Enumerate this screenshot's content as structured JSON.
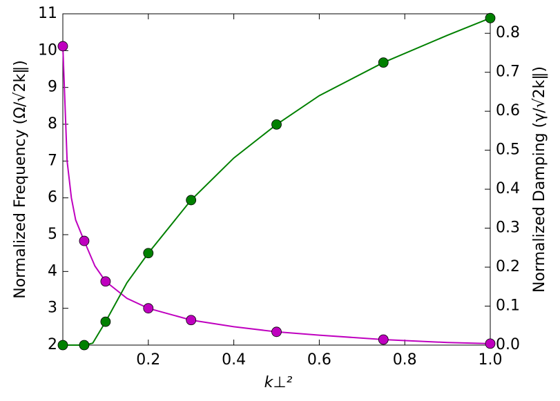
{
  "chart_data": {
    "type": "line",
    "x_label": "k⊥²",
    "y_label": "Normalized Frequency (Ω/√2k‖)",
    "y2_label": "Normalized Damping (γ/√2k‖)",
    "y_color": "#bf00bf",
    "y2_color": "#008000",
    "xlim": [
      0,
      1
    ],
    "xticks": [
      0.2,
      0.4,
      0.6,
      0.8,
      {
        "value": 1,
        "label": "1.0"
      }
    ],
    "ylim": [
      2,
      11
    ],
    "yticks": [
      2,
      3,
      4,
      5,
      6,
      7,
      8,
      9,
      10,
      11
    ],
    "y2lim": [
      0,
      0.85
    ],
    "y2ticks": [
      {
        "value": 0,
        "label": "0.0"
      },
      0.1,
      0.2,
      0.3,
      0.4,
      0.5,
      0.6,
      0.7,
      0.8
    ],
    "series": [
      {
        "style": "line",
        "color": "#bf00bf",
        "x": [
          0,
          0.01,
          0.02,
          0.03,
          0.05,
          0.075,
          0.1,
          0.15,
          0.2,
          0.3,
          0.4,
          0.5,
          0.6,
          0.75,
          0.9,
          1.0
        ],
        "values": [
          10.12,
          7.0,
          6.0,
          5.4,
          4.83,
          4.15,
          3.73,
          3.27,
          3.0,
          2.68,
          2.5,
          2.36,
          2.27,
          2.15,
          2.07,
          2.04
        ]
      },
      {
        "style": "markers",
        "color": "#bf00bf",
        "x": [
          0,
          0.05,
          0.1,
          0.2,
          0.3,
          0.5,
          0.75,
          1.0
        ],
        "values": [
          10.12,
          4.83,
          3.73,
          3.0,
          2.68,
          2.36,
          2.15,
          2.04
        ]
      },
      {
        "style": "line",
        "color": "#008000",
        "axis": "y2",
        "x": [
          0,
          0.05,
          0.07,
          0.1,
          0.15,
          0.2,
          0.3,
          0.4,
          0.5,
          0.6,
          0.75,
          0.9,
          1.0
        ],
        "values": [
          0,
          0,
          0.005,
          0.06,
          0.16,
          0.236,
          0.372,
          0.48,
          0.566,
          0.64,
          0.725,
          0.795,
          0.839
        ]
      },
      {
        "style": "markers",
        "color": "#008000",
        "axis": "y2",
        "x": [
          0,
          0.05,
          0.1,
          0.2,
          0.3,
          0.5,
          0.75,
          1.0
        ],
        "values": [
          0,
          0,
          0.06,
          0.236,
          0.372,
          0.566,
          0.725,
          0.839
        ]
      }
    ]
  }
}
